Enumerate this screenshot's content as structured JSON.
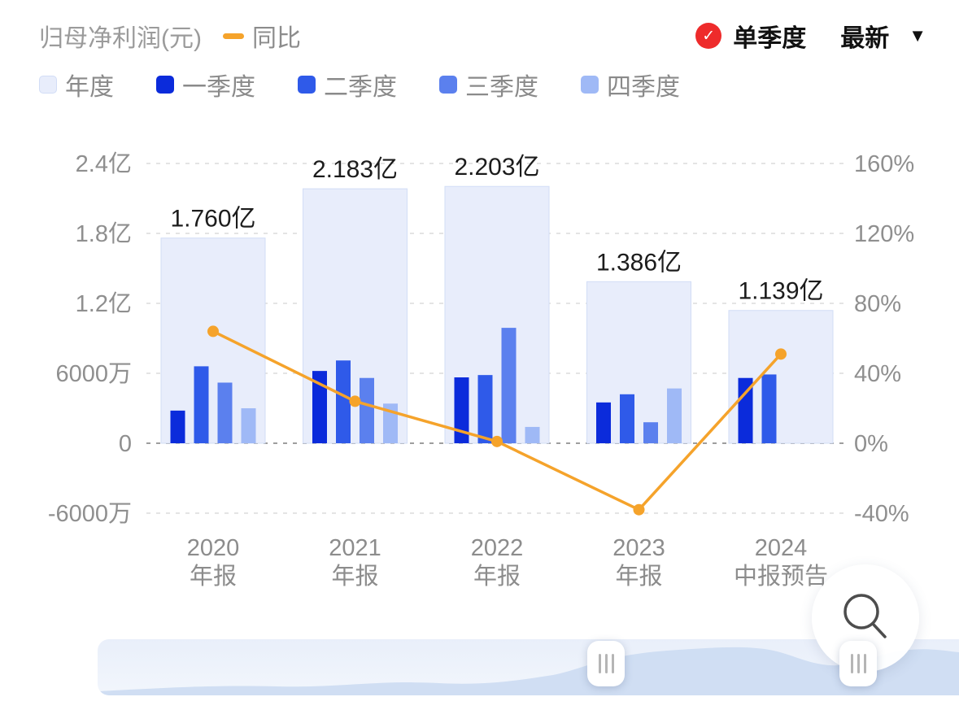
{
  "header": {
    "title": "归母净利润(元)",
    "line_legend": "同比",
    "single_quarter": "单季度",
    "latest": "最新",
    "check_glyph": "✓",
    "caret_glyph": "▼"
  },
  "colors": {
    "annual": "#e8edfb",
    "annual_border": "#d2ddf6",
    "q1": "#0b2bdb",
    "q2": "#2f5ae9",
    "q3": "#5b80ee",
    "q4": "#9fb9f6",
    "line": "#f5a32b",
    "check_red": "#ee2b2b"
  },
  "legend": [
    {
      "key": "annual",
      "label": "年度"
    },
    {
      "key": "q1",
      "label": "一季度"
    },
    {
      "key": "q2",
      "label": "二季度"
    },
    {
      "key": "q3",
      "label": "三季度"
    },
    {
      "key": "q4",
      "label": "四季度"
    }
  ],
  "chart_data": {
    "type": "bar",
    "title": "归母净利润(元)",
    "line_series_name": "同比",
    "left_axis": {
      "unit": "万元",
      "ticks": [
        24000,
        18000,
        12000,
        6000,
        0,
        -6000
      ],
      "labels": [
        "2.4亿",
        "1.8亿",
        "1.2亿",
        "6000万",
        "0",
        "-6000万"
      ]
    },
    "right_axis": {
      "unit": "%",
      "ticks": [
        160,
        120,
        80,
        40,
        0,
        -40
      ],
      "labels": [
        "160%",
        "120%",
        "80%",
        "40%",
        "0%",
        "-40%"
      ]
    },
    "grid": "dashed",
    "legend_position": "top",
    "groups": [
      {
        "label1": "2020",
        "label2": "年报",
        "annual": 17600,
        "annual_label": "1.760亿",
        "quarters": [
          2800,
          6600,
          5200,
          3000
        ],
        "yoy": 64
      },
      {
        "label1": "2021",
        "label2": "年报",
        "annual": 21830,
        "annual_label": "2.183亿",
        "quarters": [
          6200,
          7100,
          5600,
          3400
        ],
        "yoy": 24
      },
      {
        "label1": "2022",
        "label2": "年报",
        "annual": 22030,
        "annual_label": "2.203亿",
        "quarters": [
          5650,
          5850,
          9900,
          1400
        ],
        "yoy": 1
      },
      {
        "label1": "2023",
        "label2": "年报",
        "annual": 13860,
        "annual_label": "1.386亿",
        "quarters": [
          3500,
          4200,
          1800,
          4700
        ],
        "yoy": -38
      },
      {
        "label1": "2024",
        "label2": "中报预告",
        "annual": 11390,
        "annual_label": "1.139亿",
        "quarters": [
          5600,
          5900
        ],
        "yoy": 51
      }
    ]
  }
}
